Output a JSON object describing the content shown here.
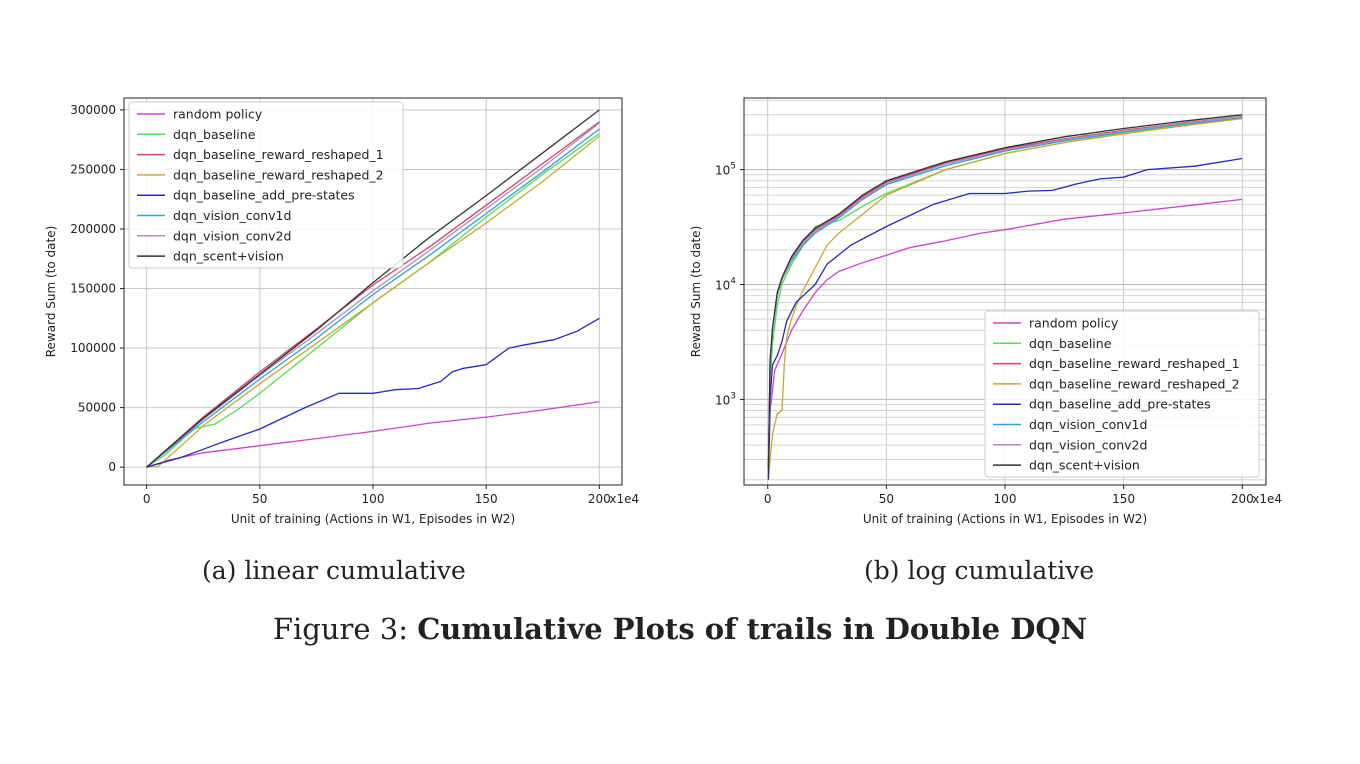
{
  "figure": {
    "caption_prefix": "Figure 3: ",
    "caption_title": "Cumulative Plots of trails in Double DQN"
  },
  "chart_data": [
    {
      "type": "line",
      "subcaption": "(a) linear cumulative",
      "xlabel": "Unit of training (Actions in W1, Episodes in W2)",
      "ylabel": "Reward Sum (to date)",
      "x_multiplier_label": "x1e4",
      "xlim": [
        -10,
        210
      ],
      "ylim": [
        -15000,
        310000
      ],
      "y_scale": "linear",
      "xticks": [
        0,
        50,
        100,
        150,
        200
      ],
      "xtick_labels": [
        "0",
        "50",
        "100",
        "150",
        "200"
      ],
      "yticks": [
        0,
        50000,
        100000,
        150000,
        200000,
        250000,
        300000
      ],
      "ytick_labels": [
        "0",
        "50000",
        "100000",
        "150000",
        "200000",
        "250000",
        "300000"
      ],
      "grid": true,
      "legend_position": "upper left",
      "series": [
        {
          "name": "random policy",
          "color": "#cc44cc",
          "x": [
            0,
            10,
            25,
            50,
            75,
            100,
            125,
            150,
            175,
            200
          ],
          "values": [
            0,
            6000,
            12000,
            18000,
            24000,
            30000,
            37000,
            42000,
            48000,
            55000
          ]
        },
        {
          "name": "dqn_baseline",
          "color": "#55dd55",
          "x": [
            0,
            8,
            15,
            20,
            30,
            40,
            50,
            75,
            100,
            125,
            150,
            175,
            200
          ],
          "values": [
            0,
            10000,
            22000,
            32000,
            36000,
            48000,
            62000,
            100000,
            138000,
            172000,
            210000,
            246000,
            280000
          ]
        },
        {
          "name": "dqn_baseline_reward_reshaped_1",
          "color": "#d04070",
          "x": [
            0,
            25,
            50,
            75,
            100,
            125,
            150,
            175,
            200
          ],
          "values": [
            0,
            42000,
            80000,
            116000,
            153000,
            185000,
            220000,
            255000,
            290000
          ]
        },
        {
          "name": "dqn_baseline_reward_reshaped_2",
          "color": "#c8a830",
          "x": [
            0,
            5,
            10,
            20,
            25,
            50,
            75,
            100,
            125,
            150,
            175,
            200
          ],
          "values": [
            0,
            500,
            9000,
            26000,
            35000,
            70000,
            104000,
            138000,
            172000,
            205000,
            240000,
            278000
          ]
        },
        {
          "name": "dqn_baseline_add_pre-states",
          "color": "#2828b8",
          "x": [
            0,
            15,
            25,
            35,
            50,
            70,
            85,
            90,
            100,
            110,
            120,
            130,
            135,
            140,
            150,
            160,
            165,
            180,
            190,
            200
          ],
          "values": [
            0,
            8000,
            15000,
            22000,
            32000,
            50000,
            62000,
            62000,
            62000,
            65000,
            66000,
            72000,
            80000,
            83000,
            86000,
            100000,
            102000,
            107000,
            114000,
            125000
          ]
        },
        {
          "name": "dqn_vision_conv1d",
          "color": "#30a0d8",
          "x": [
            0,
            25,
            50,
            75,
            100,
            125,
            150,
            175,
            200
          ],
          "values": [
            0,
            38000,
            74000,
            108000,
            145000,
            178000,
            213000,
            248000,
            284000
          ]
        },
        {
          "name": "dqn_vision_conv2d",
          "color": "#a890b8",
          "x": [
            0,
            25,
            50,
            75,
            100,
            125,
            150,
            175,
            200
          ],
          "values": [
            0,
            40000,
            77000,
            112000,
            148000,
            182000,
            217000,
            252000,
            289000
          ]
        },
        {
          "name": "dqn_scent+vision",
          "color": "#333333",
          "x": [
            0,
            25,
            50,
            75,
            100,
            125,
            150,
            175,
            200
          ],
          "values": [
            0,
            41000,
            78000,
            115000,
            155000,
            193000,
            228000,
            264000,
            300000
          ]
        }
      ]
    },
    {
      "type": "line",
      "subcaption": "(b) log cumulative",
      "xlabel": "Unit of training (Actions in W1, Episodes in W2)",
      "ylabel": "Reward Sum (to date)",
      "x_multiplier_label": "x1e4",
      "xlim": [
        -10,
        210
      ],
      "ylim": [
        180,
        420000
      ],
      "y_scale": "log",
      "xticks": [
        0,
        50,
        100,
        150,
        200
      ],
      "xtick_labels": [
        "0",
        "50",
        "100",
        "150",
        "200"
      ],
      "yticks": [
        1000,
        10000,
        100000
      ],
      "ytick_bases": [
        "10",
        "10",
        "10"
      ],
      "ytick_exponents": [
        "3",
        "4",
        "5"
      ],
      "grid": true,
      "legend_position": "lower right",
      "series": [
        {
          "name": "random policy",
          "color": "#cc44cc",
          "x": [
            0.3,
            1,
            3,
            6,
            10,
            15,
            20,
            25,
            30,
            40,
            50,
            60,
            75,
            90,
            100,
            125,
            150,
            175,
            200
          ],
          "values": [
            200,
            800,
            1800,
            2500,
            4000,
            6000,
            8500,
            11000,
            13000,
            15500,
            18000,
            21000,
            24000,
            28000,
            30000,
            37000,
            42000,
            48000,
            55000
          ]
        },
        {
          "name": "dqn_baseline",
          "color": "#55dd55",
          "x": [
            0.3,
            1,
            2,
            4,
            6,
            10,
            15,
            20,
            30,
            40,
            50,
            75,
            100,
            125,
            150,
            175,
            200
          ],
          "values": [
            250,
            1500,
            3000,
            6500,
            10000,
            15000,
            22000,
            32000,
            36000,
            48000,
            62000,
            100000,
            138000,
            172000,
            210000,
            246000,
            280000
          ]
        },
        {
          "name": "dqn_baseline_reward_reshaped_1",
          "color": "#d04070",
          "x": [
            0.3,
            1,
            2,
            4,
            6,
            10,
            15,
            20,
            30,
            40,
            50,
            75,
            100,
            125,
            150,
            175,
            200
          ],
          "values": [
            250,
            2000,
            4000,
            8000,
            11000,
            17000,
            24000,
            30000,
            40000,
            58000,
            78000,
            115000,
            152000,
            185000,
            220000,
            255000,
            290000
          ]
        },
        {
          "name": "dqn_baseline_reward_reshaped_2",
          "color": "#c8a830",
          "x": [
            0.3,
            1,
            2,
            4,
            6,
            7,
            8,
            10,
            12,
            15,
            20,
            25,
            30,
            50,
            75,
            100,
            125,
            150,
            175,
            200
          ],
          "values": [
            200,
            300,
            500,
            750,
            800,
            2000,
            3500,
            5000,
            6500,
            9000,
            14000,
            22000,
            28000,
            60000,
            100000,
            138000,
            172000,
            205000,
            240000,
            278000
          ]
        },
        {
          "name": "dqn_baseline_add_pre-states",
          "color": "#2828b8",
          "x": [
            0.3,
            1,
            2,
            4,
            6,
            8,
            12,
            15,
            20,
            25,
            35,
            50,
            70,
            85,
            100,
            110,
            120,
            130,
            140,
            150,
            160,
            180,
            200
          ],
          "values": [
            200,
            1000,
            2000,
            2400,
            3200,
            4800,
            7000,
            8000,
            10000,
            15000,
            22000,
            32000,
            50000,
            62000,
            62000,
            65000,
            66000,
            75000,
            83000,
            86000,
            100000,
            107000,
            125000
          ]
        },
        {
          "name": "dqn_vision_conv1d",
          "color": "#30a0d8",
          "x": [
            0.3,
            1,
            2,
            4,
            6,
            10,
            15,
            20,
            30,
            40,
            50,
            75,
            100,
            125,
            150,
            175,
            200
          ],
          "values": [
            250,
            2000,
            4000,
            8000,
            11000,
            16000,
            22000,
            28000,
            38000,
            55000,
            74000,
            108000,
            145000,
            178000,
            213000,
            248000,
            284000
          ]
        },
        {
          "name": "dqn_vision_conv2d",
          "color": "#a890b8",
          "x": [
            0.3,
            1,
            2,
            4,
            6,
            10,
            15,
            20,
            30,
            40,
            50,
            75,
            100,
            125,
            150,
            175,
            200
          ],
          "values": [
            250,
            2000,
            4000,
            8000,
            11000,
            16500,
            23000,
            29000,
            39000,
            56000,
            76000,
            112000,
            148000,
            182000,
            217000,
            252000,
            289000
          ]
        },
        {
          "name": "dqn_scent+vision",
          "color": "#333333",
          "x": [
            0.3,
            1,
            2,
            4,
            6,
            10,
            15,
            20,
            30,
            40,
            50,
            75,
            100,
            125,
            150,
            175,
            200
          ],
          "values": [
            250,
            2200,
            4200,
            8500,
            11500,
            17500,
            24500,
            31000,
            41000,
            60000,
            80000,
            117000,
            155000,
            193000,
            228000,
            264000,
            300000
          ]
        }
      ]
    }
  ]
}
